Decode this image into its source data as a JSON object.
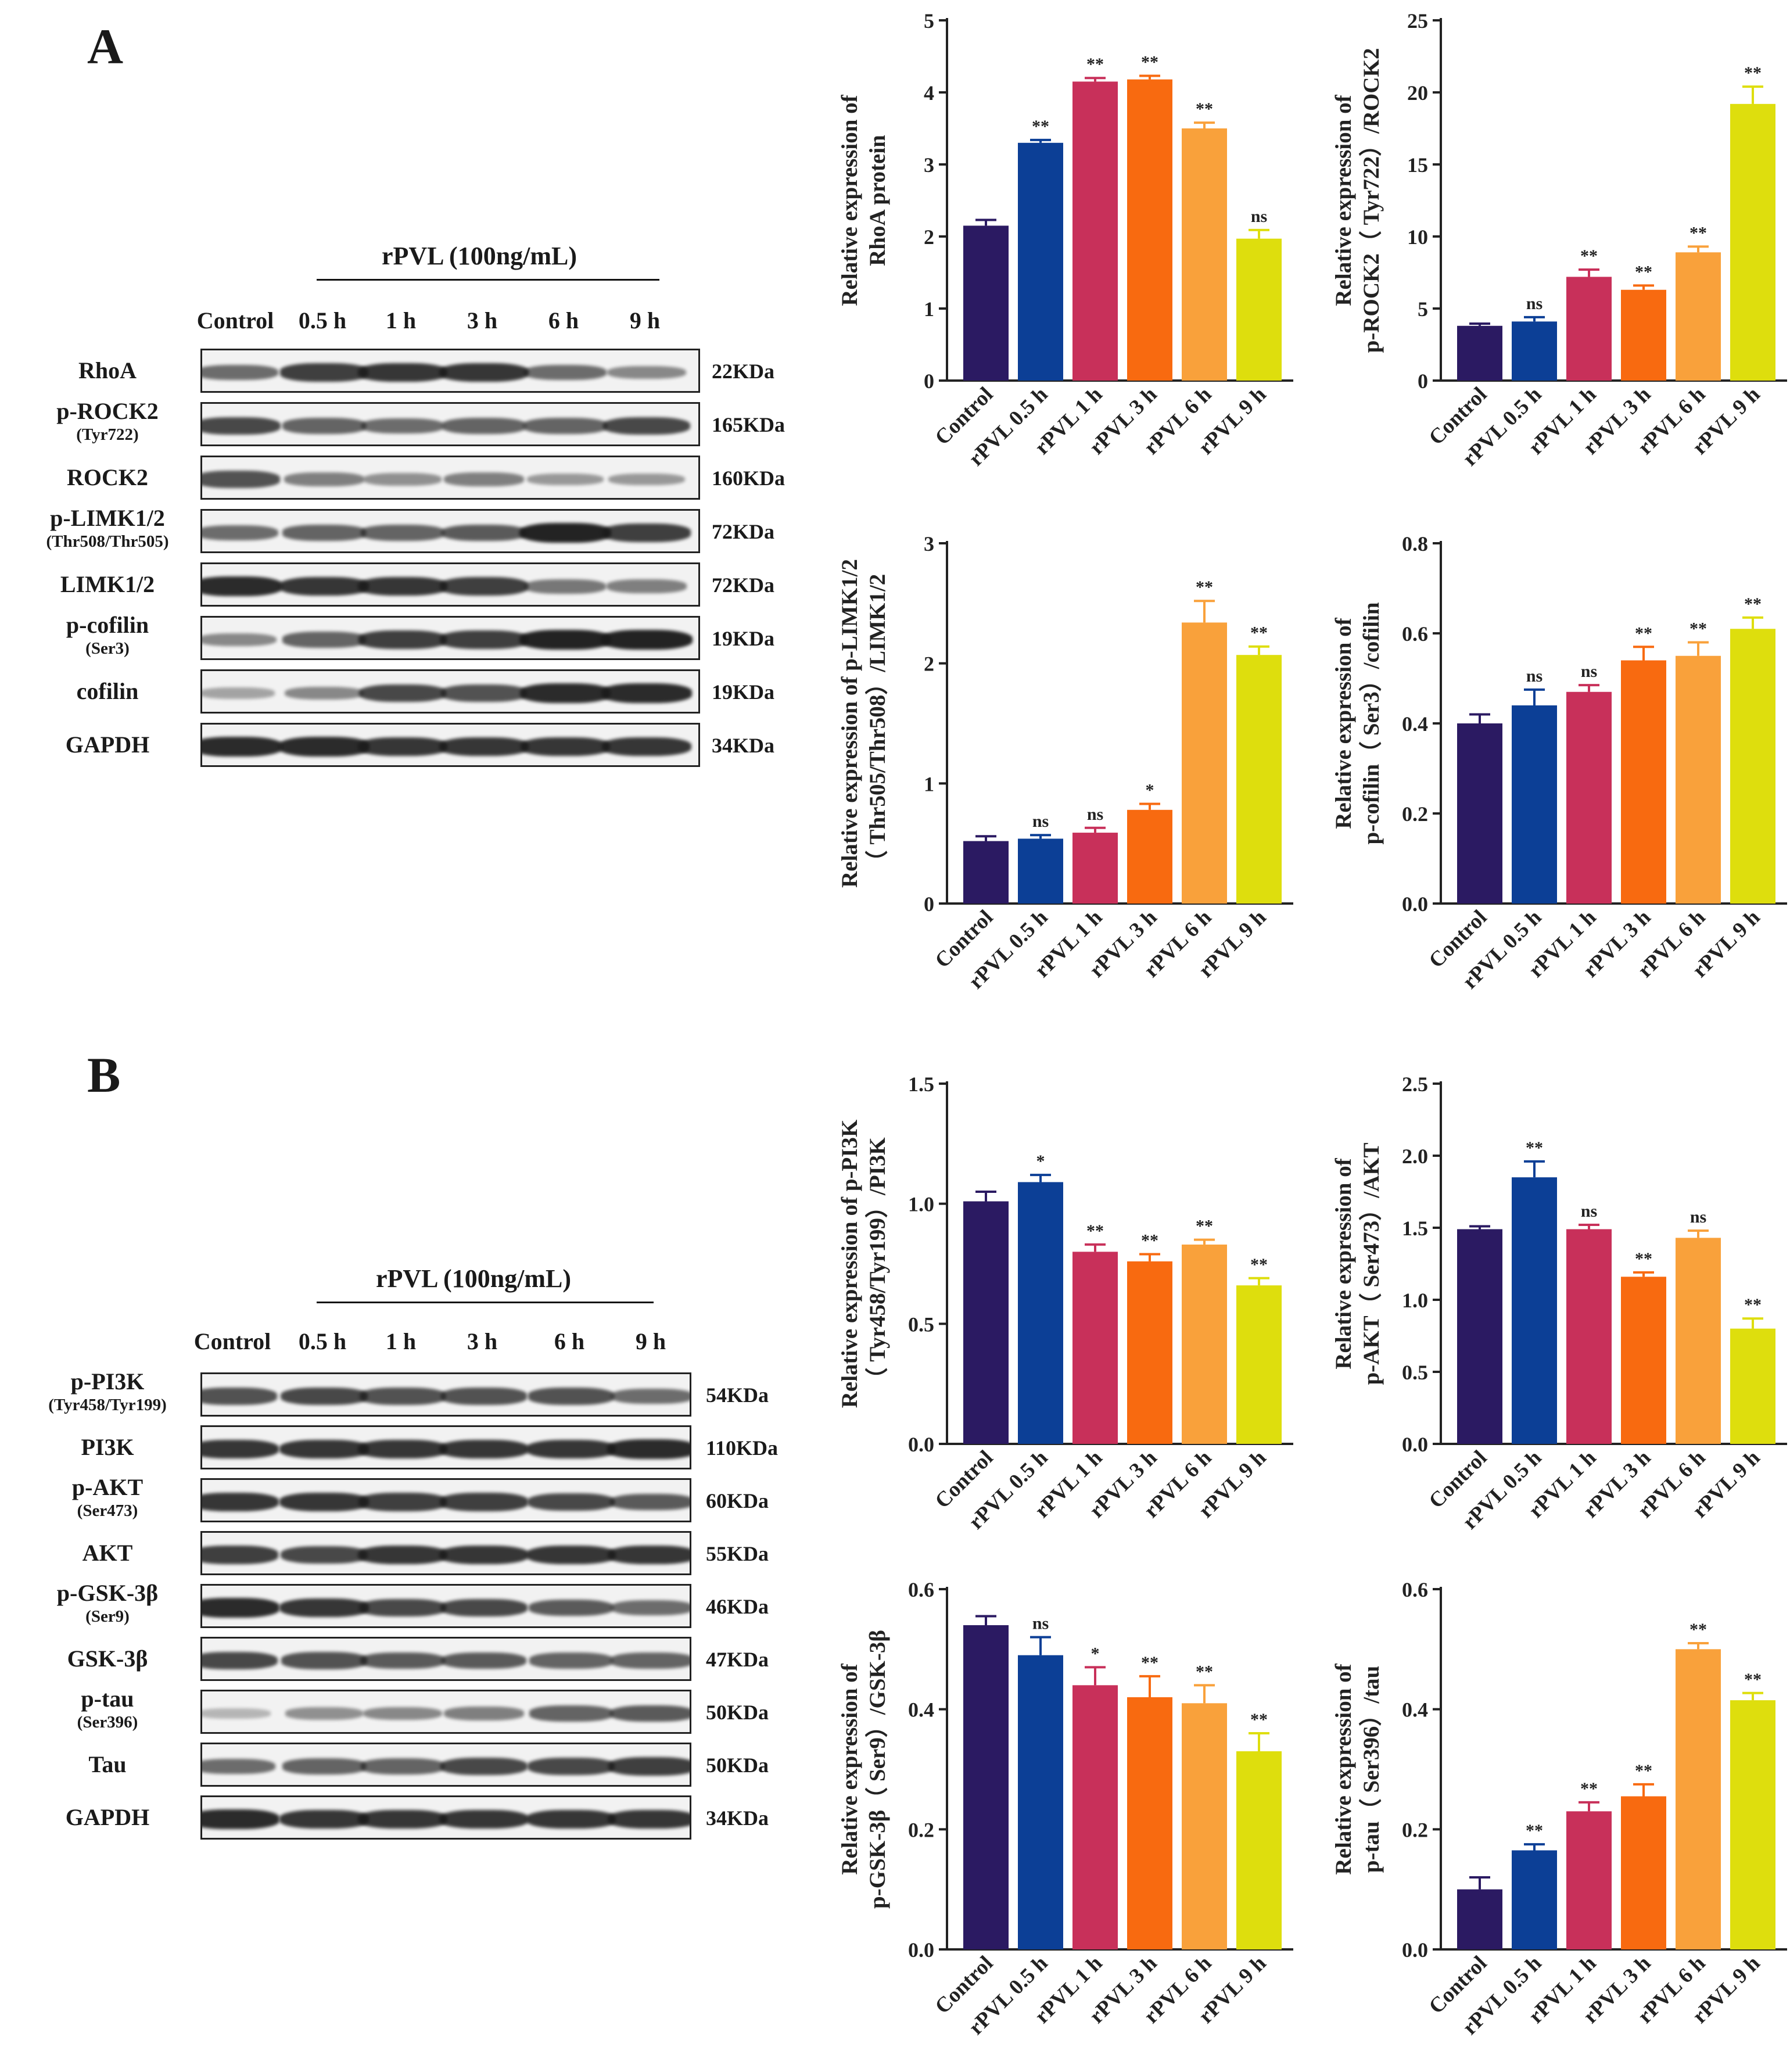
{
  "panels": [
    {
      "letter": "A",
      "blot": {
        "group_label": "rPVL (100ng/mL)",
        "lanes": [
          "Control",
          "0.5 h",
          "1 h",
          "3 h",
          "6 h",
          "9 h"
        ],
        "rows": [
          {
            "label": "RhoA",
            "sub": "",
            "mw": "22KDa",
            "intensity": [
              0.55,
              0.8,
              0.85,
              0.85,
              0.55,
              0.4
            ]
          },
          {
            "label": "p-ROCK2",
            "sub": "(Tyr722)",
            "mw": "165KDa",
            "intensity": [
              0.75,
              0.6,
              0.55,
              0.6,
              0.6,
              0.75
            ]
          },
          {
            "label": "ROCK2",
            "sub": "",
            "mw": "160KDa",
            "intensity": [
              0.7,
              0.45,
              0.35,
              0.45,
              0.3,
              0.3
            ]
          },
          {
            "label": "p-LIMK1/2",
            "sub": "(Thr508/Thr505)",
            "mw": "72KDa",
            "intensity": [
              0.55,
              0.6,
              0.6,
              0.65,
              0.95,
              0.8
            ]
          },
          {
            "label": "LIMK1/2",
            "sub": "",
            "mw": "72KDa",
            "intensity": [
              0.9,
              0.85,
              0.85,
              0.8,
              0.5,
              0.45
            ]
          },
          {
            "label": "p-cofilin",
            "sub": "(Ser3)",
            "mw": "19KDa",
            "intensity": [
              0.4,
              0.6,
              0.8,
              0.8,
              0.95,
              0.95
            ]
          },
          {
            "label": "cofilin",
            "sub": "",
            "mw": "19KDa",
            "intensity": [
              0.25,
              0.4,
              0.75,
              0.7,
              0.9,
              0.9
            ]
          },
          {
            "label": "GAPDH",
            "sub": "",
            "mw": "34KDa",
            "intensity": [
              0.9,
              0.9,
              0.85,
              0.85,
              0.85,
              0.85
            ]
          }
        ]
      }
    },
    {
      "letter": "B",
      "blot": {
        "group_label": "rPVL (100ng/mL)",
        "lanes": [
          "Control",
          "0.5 h",
          "1 h",
          "3 h",
          "6 h",
          "9 h"
        ],
        "rows": [
          {
            "label": "p-PI3K",
            "sub": "(Tyr458/Tyr199)",
            "mw": "54KDa",
            "intensity": [
              0.7,
              0.75,
              0.7,
              0.7,
              0.7,
              0.55
            ]
          },
          {
            "label": "PI3K",
            "sub": "",
            "mw": "110KDa",
            "intensity": [
              0.85,
              0.85,
              0.85,
              0.85,
              0.85,
              0.9
            ]
          },
          {
            "label": "p-AKT",
            "sub": "(Ser473)",
            "mw": "60KDa",
            "intensity": [
              0.85,
              0.85,
              0.8,
              0.8,
              0.75,
              0.65
            ]
          },
          {
            "label": "AKT",
            "sub": "",
            "mw": "55KDa",
            "intensity": [
              0.8,
              0.75,
              0.85,
              0.85,
              0.85,
              0.85
            ]
          },
          {
            "label": "p-GSK-3β",
            "sub": "(Ser9)",
            "mw": "46KDa",
            "intensity": [
              0.9,
              0.85,
              0.75,
              0.75,
              0.65,
              0.55
            ]
          },
          {
            "label": "GSK-3β",
            "sub": "",
            "mw": "47KDa",
            "intensity": [
              0.75,
              0.7,
              0.65,
              0.65,
              0.6,
              0.6
            ]
          },
          {
            "label": "p-tau",
            "sub": "(Ser396)",
            "mw": "50KDa",
            "intensity": [
              0.15,
              0.35,
              0.4,
              0.45,
              0.6,
              0.65
            ]
          },
          {
            "label": "Tau",
            "sub": "",
            "mw": "50KDa",
            "intensity": [
              0.55,
              0.6,
              0.6,
              0.75,
              0.75,
              0.8
            ]
          },
          {
            "label": "GAPDH",
            "sub": "",
            "mw": "34KDa",
            "intensity": [
              0.9,
              0.85,
              0.85,
              0.85,
              0.85,
              0.85
            ]
          }
        ]
      }
    }
  ],
  "colors": [
    "#2b1a62",
    "#0c3f96",
    "#c8305a",
    "#f86a10",
    "#f9a13b",
    "#dede0d"
  ],
  "chart_data": [
    {
      "type": "bar",
      "categories": [
        "Control",
        "rPVL 0.5 h",
        "rPVL 1 h",
        "rPVL 3 h",
        "rPVL 6 h",
        "rPVL 9 h"
      ],
      "ylabel_lines": [
        "Relative expression of",
        "RhoA  protein"
      ],
      "ylim": [
        0,
        5
      ],
      "yticks": [
        0,
        1,
        2,
        3,
        4,
        5
      ],
      "tick_labels": [
        "0",
        "1",
        "2",
        "3",
        "4",
        "5"
      ],
      "values": [
        2.15,
        3.3,
        4.15,
        4.18,
        3.5,
        1.97
      ],
      "errors": [
        0.08,
        0.04,
        0.05,
        0.05,
        0.08,
        0.12
      ],
      "significance": [
        "",
        "**",
        "**",
        "**",
        "**",
        "ns"
      ]
    },
    {
      "type": "bar",
      "categories": [
        "Control",
        "rPVL 0.5 h",
        "rPVL 1 h",
        "rPVL 3 h",
        "rPVL 6 h",
        "rPVL 9 h"
      ],
      "ylabel_lines": [
        "Relative expression of",
        "p-ROCK2（ Tyr722）/ROCK2"
      ],
      "ylim": [
        0,
        25
      ],
      "yticks": [
        0,
        5,
        10,
        15,
        20,
        25
      ],
      "tick_labels": [
        "0",
        "5",
        "10",
        "15",
        "20",
        "25"
      ],
      "values": [
        3.8,
        4.1,
        7.2,
        6.3,
        8.9,
        19.2
      ],
      "errors": [
        0.15,
        0.3,
        0.5,
        0.3,
        0.4,
        1.2
      ],
      "significance": [
        "",
        "ns",
        "**",
        "**",
        "**",
        "**"
      ]
    },
    {
      "type": "bar",
      "categories": [
        "Control",
        "rPVL 0.5 h",
        "rPVL 1 h",
        "rPVL 3 h",
        "rPVL 6 h",
        "rPVL 9 h"
      ],
      "ylabel_lines": [
        "Relative expression of p-LIMK1/2",
        "（ Thr505/Thr508）/LIMK1/2"
      ],
      "ylim": [
        0,
        3
      ],
      "yticks": [
        0,
        1,
        2,
        3
      ],
      "tick_labels": [
        "0",
        "1",
        "2",
        "3"
      ],
      "values": [
        0.52,
        0.54,
        0.59,
        0.78,
        2.34,
        2.07
      ],
      "errors": [
        0.04,
        0.03,
        0.04,
        0.05,
        0.18,
        0.07
      ],
      "significance": [
        "",
        "ns",
        "ns",
        "*",
        "**",
        "**"
      ]
    },
    {
      "type": "bar",
      "categories": [
        "Control",
        "rPVL 0.5 h",
        "rPVL 1 h",
        "rPVL 3 h",
        "rPVL 6 h",
        "rPVL 9 h"
      ],
      "ylabel_lines": [
        "Relative expression of",
        "p-cofilin（ Ser3）/cofilin"
      ],
      "ylim": [
        0,
        0.8
      ],
      "yticks": [
        0,
        0.2,
        0.4,
        0.6,
        0.8
      ],
      "tick_labels": [
        "0.0",
        "0.2",
        "0.4",
        "0.6",
        "0.8"
      ],
      "values": [
        0.4,
        0.44,
        0.47,
        0.54,
        0.55,
        0.61
      ],
      "errors": [
        0.02,
        0.035,
        0.015,
        0.03,
        0.03,
        0.025
      ],
      "significance": [
        "",
        "ns",
        "ns",
        "**",
        "**",
        "**"
      ]
    },
    {
      "type": "bar",
      "categories": [
        "Control",
        "rPVL 0.5 h",
        "rPVL 1 h",
        "rPVL 3 h",
        "rPVL 6 h",
        "rPVL 9 h"
      ],
      "ylabel_lines": [
        "Relative expression of p-PI3K",
        "（ Tyr458/Tyr199）/PI3K"
      ],
      "ylim": [
        0,
        1.5
      ],
      "yticks": [
        0,
        0.5,
        1.0,
        1.5
      ],
      "tick_labels": [
        "0.0",
        "0.5",
        "1.0",
        "1.5"
      ],
      "values": [
        1.01,
        1.09,
        0.8,
        0.76,
        0.83,
        0.66
      ],
      "errors": [
        0.04,
        0.03,
        0.03,
        0.03,
        0.02,
        0.03
      ],
      "significance": [
        "",
        "*",
        "**",
        "**",
        "**",
        "**"
      ]
    },
    {
      "type": "bar",
      "categories": [
        "Control",
        "rPVL 0.5 h",
        "rPVL 1 h",
        "rPVL 3 h",
        "rPVL 6 h",
        "rPVL 9 h"
      ],
      "ylabel_lines": [
        "Relative expression of",
        "p-AKT（ Ser473）/AKT"
      ],
      "ylim": [
        0,
        2.5
      ],
      "yticks": [
        0,
        0.5,
        1.0,
        1.5,
        2.0,
        2.5
      ],
      "tick_labels": [
        "0.0",
        "0.5",
        "1.0",
        "1.5",
        "2.0",
        "2.5"
      ],
      "values": [
        1.49,
        1.85,
        1.49,
        1.16,
        1.43,
        0.8
      ],
      "errors": [
        0.02,
        0.11,
        0.03,
        0.03,
        0.05,
        0.07
      ],
      "significance": [
        "",
        "**",
        "ns",
        "**",
        "ns",
        "**"
      ]
    },
    {
      "type": "bar",
      "categories": [
        "Control",
        "rPVL 0.5 h",
        "rPVL 1 h",
        "rPVL 3 h",
        "rPVL 6 h",
        "rPVL 9 h"
      ],
      "ylabel_lines": [
        "Relative expression of",
        "p-GSK-3β（ Ser9）/GSK-3β"
      ],
      "ylim": [
        0,
        0.6
      ],
      "yticks": [
        0,
        0.2,
        0.4,
        0.6
      ],
      "tick_labels": [
        "0.0",
        "0.2",
        "0.4",
        "0.6"
      ],
      "values": [
        0.54,
        0.49,
        0.44,
        0.42,
        0.41,
        0.33
      ],
      "errors": [
        0.015,
        0.03,
        0.03,
        0.035,
        0.03,
        0.03
      ],
      "significance": [
        "",
        "ns",
        "*",
        "**",
        "**",
        "**"
      ]
    },
    {
      "type": "bar",
      "categories": [
        "Control",
        "rPVL 0.5 h",
        "rPVL 1 h",
        "rPVL 3 h",
        "rPVL 6 h",
        "rPVL 9 h"
      ],
      "ylabel_lines": [
        "Relative expression of",
        "p-tau（ Ser396）/tau"
      ],
      "ylim": [
        0,
        0.6
      ],
      "yticks": [
        0,
        0.2,
        0.4,
        0.6
      ],
      "tick_labels": [
        "0.0",
        "0.2",
        "0.4",
        "0.6"
      ],
      "values": [
        0.1,
        0.165,
        0.23,
        0.255,
        0.5,
        0.415
      ],
      "errors": [
        0.02,
        0.01,
        0.015,
        0.02,
        0.01,
        0.012
      ],
      "significance": [
        "",
        "**",
        "**",
        "**",
        "**",
        "**"
      ]
    }
  ]
}
